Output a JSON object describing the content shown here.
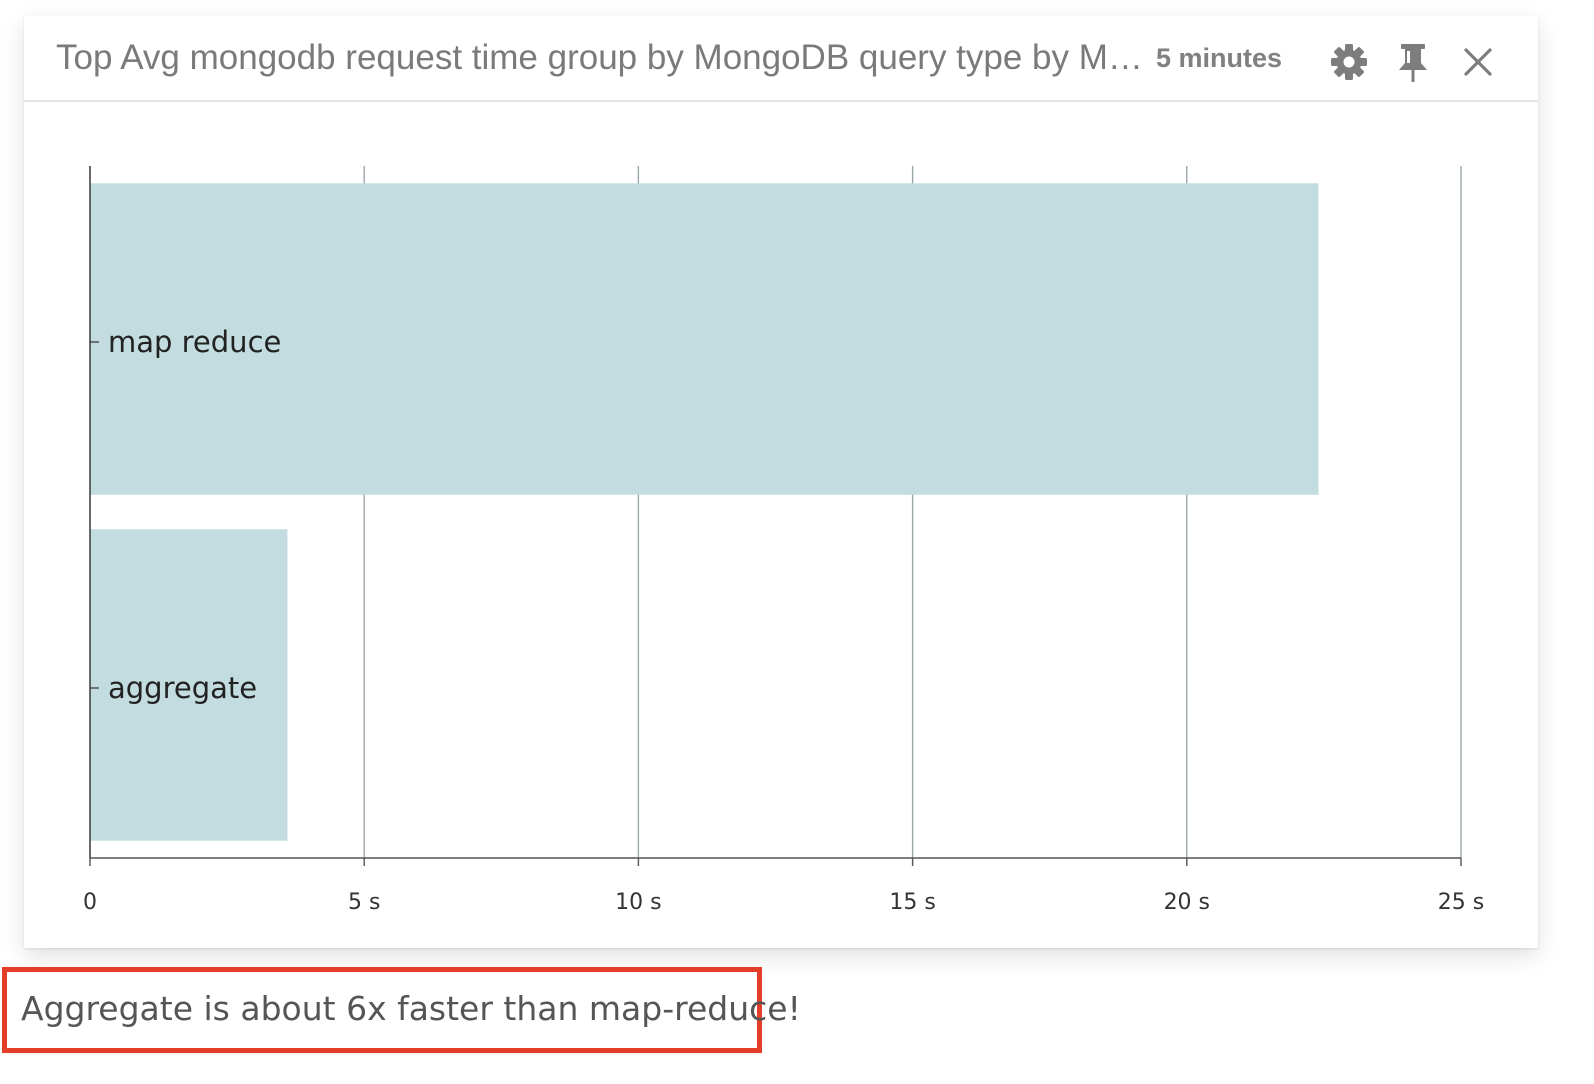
{
  "widget": {
    "title": "Top Avg mongodb request time group by MongoDB query type by MongoDB Database Name",
    "time_range": "5 minutes",
    "icons": {
      "settings": "gear-icon",
      "pin": "pin-icon",
      "close": "close-icon"
    }
  },
  "chart_data": {
    "type": "bar",
    "orientation": "horizontal",
    "categories": [
      "map reduce",
      "aggregate"
    ],
    "values": [
      22.4,
      3.6
    ],
    "unit": "s",
    "xlim": [
      0,
      25
    ],
    "x_ticks": [
      0,
      5,
      10,
      15,
      20,
      25
    ],
    "x_tick_labels": [
      "0",
      "5 s",
      "10 s",
      "15 s",
      "20 s",
      "25 s"
    ],
    "grid": true,
    "bar_color": "#c2dce0"
  },
  "annotation": {
    "text": "Aggregate is about 6x faster than map-reduce!",
    "border_color": "#e43d28"
  }
}
